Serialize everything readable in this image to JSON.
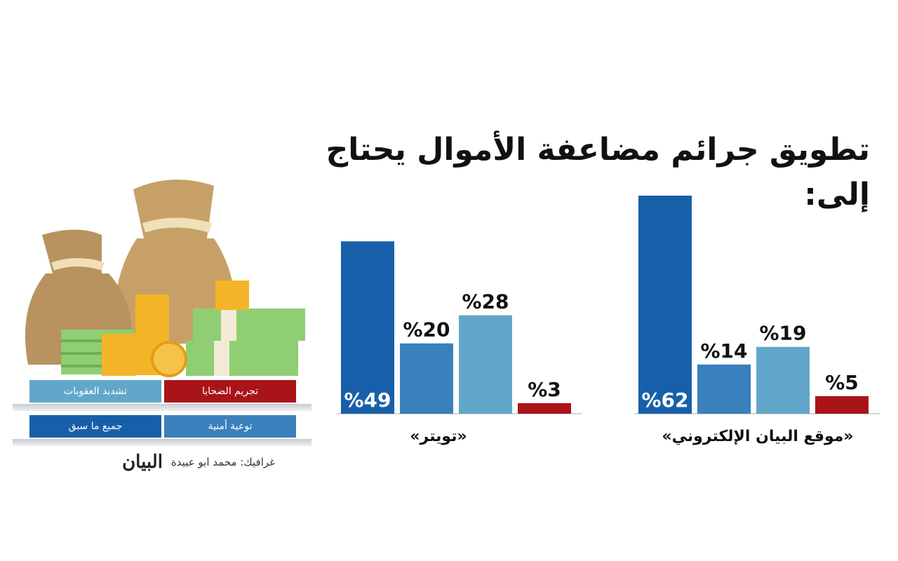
{
  "title": "تطويق جرائم مضاعفة الأموال يحتاج إلى:",
  "legend": {
    "victims": "تجريم الضحايا",
    "penalties": "تشديد العقوبات",
    "awareness": "توعية أمنية",
    "all": "جميع ما سبق"
  },
  "credit": "غرافيك: محمد ابو عبيدة",
  "logo": "البيان",
  "colors": {
    "all": "#1760a9",
    "awareness": "#3a80bd",
    "penalties": "#62a7ca",
    "victims": "#a91419"
  },
  "chart_data": [
    {
      "type": "bar",
      "label": "«تويتر»",
      "categories": [
        "جميع ما سبق",
        "توعية أمنية",
        "تشديد العقوبات",
        "تجريم الضحايا"
      ],
      "values": [
        49,
        20,
        28,
        3
      ],
      "value_labels": [
        "%49",
        "%20",
        "%28",
        "%3"
      ],
      "ylim": [
        0,
        62
      ]
    },
    {
      "type": "bar",
      "label": "«موقع البيان الإلكتروني»",
      "categories": [
        "جميع ما سبق",
        "توعية أمنية",
        "تشديد العقوبات",
        "تجريم الضحايا"
      ],
      "values": [
        62,
        14,
        19,
        5
      ],
      "value_labels": [
        "%62",
        "%14",
        "%19",
        "%5"
      ],
      "ylim": [
        0,
        62
      ]
    }
  ]
}
